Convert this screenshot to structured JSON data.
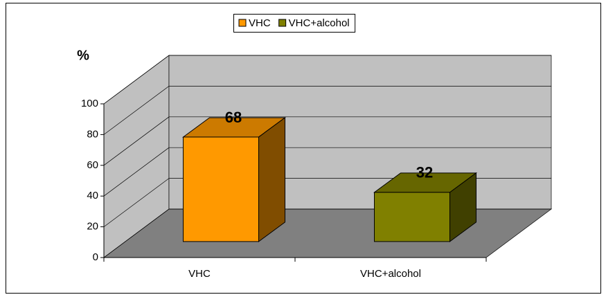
{
  "chart_data": {
    "type": "bar3d",
    "y_label": "%",
    "categories": [
      "VHC",
      "VHC+alcohol"
    ],
    "series": [
      {
        "name": "VHC",
        "color": "#ff9900",
        "values": [
          68,
          null
        ]
      },
      {
        "name": "VHC+alcohol",
        "color": "#808000",
        "values": [
          null,
          32
        ]
      }
    ],
    "ylim": [
      0,
      100
    ],
    "yticks": [
      0,
      20,
      40,
      60,
      80,
      100
    ],
    "grid": true
  }
}
